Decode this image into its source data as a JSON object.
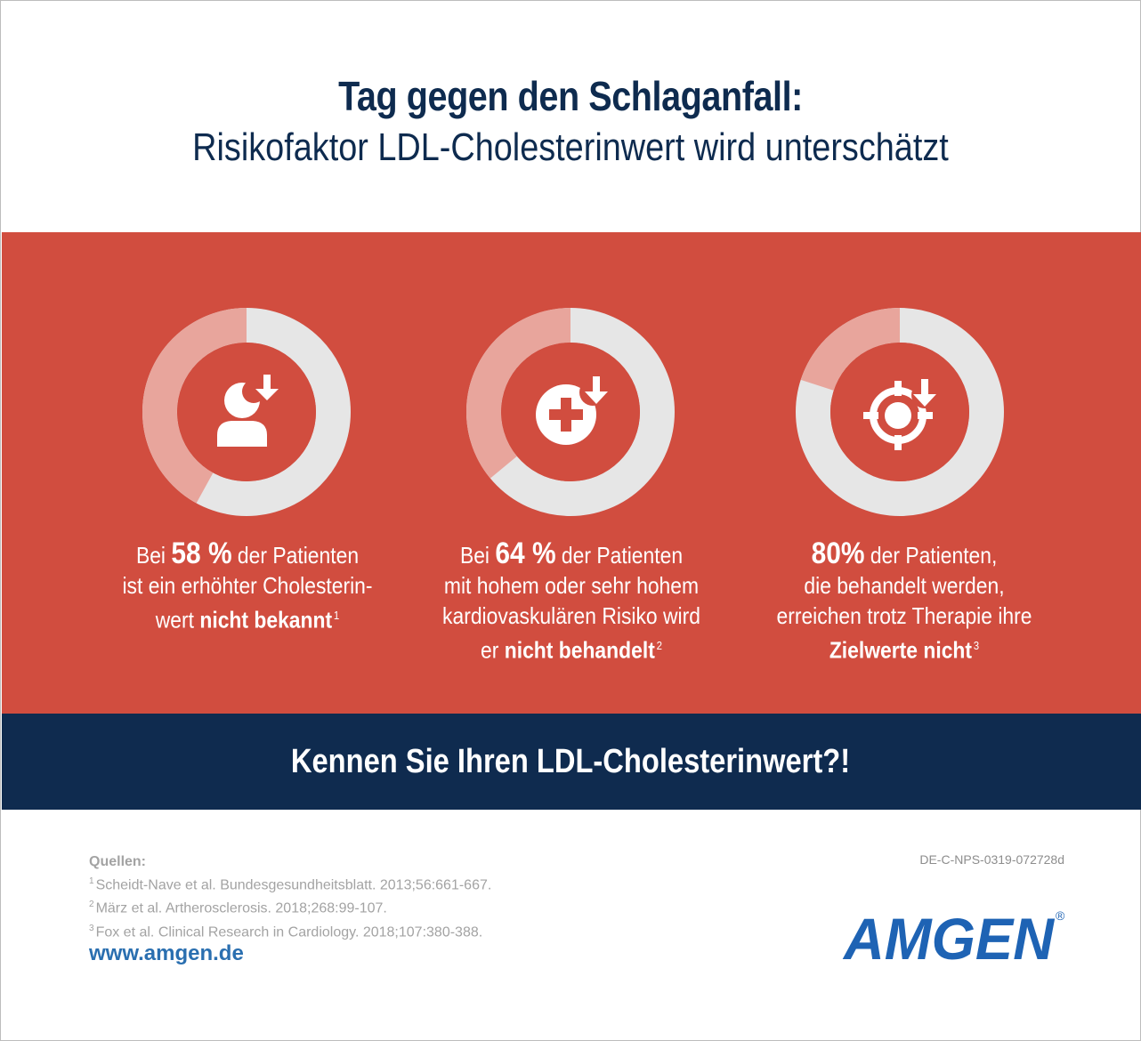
{
  "header": {
    "title": "Tag gegen den Schlaganfall:",
    "subtitle": "Risikofaktor LDL-Cholesterinwert wird unterschätzt"
  },
  "colors": {
    "band_red": "#d14d3f",
    "band_blue": "#0f2b4f",
    "donut_track": "#e6e6e6",
    "donut_fill": "#e8a59c",
    "icon_white": "#ffffff"
  },
  "chart_data": [
    {
      "type": "pie",
      "variant": "donut",
      "title": "Bei 58 % der Patienten ist ein erhöhter Cholesterinwert nicht bekannt",
      "slices": [
        {
          "label": "highlighted",
          "value": 42
        },
        {
          "label": "rest",
          "value": 58
        }
      ],
      "icon": "person-download-icon"
    },
    {
      "type": "pie",
      "variant": "donut",
      "title": "Bei 64 % der Patienten mit hohem oder sehr hohem kardiovaskulären Risiko wird er nicht behandelt",
      "slices": [
        {
          "label": "highlighted",
          "value": 36
        },
        {
          "label": "rest",
          "value": 64
        }
      ],
      "icon": "medical-cross-download-icon"
    },
    {
      "type": "pie",
      "variant": "donut",
      "title": "80% der Patienten, die behandelt werden, erreichen trotz Therapie ihre Zielwerte nicht",
      "slices": [
        {
          "label": "highlighted",
          "value": 20
        },
        {
          "label": "rest",
          "value": 80
        }
      ],
      "icon": "target-download-icon"
    }
  ],
  "stats": [
    {
      "l1_pre": "Bei ",
      "big": "58 %",
      "l1_post": " der Patienten",
      "l2": "ist ein erhöhter Cholesterin-",
      "l3_pre": "wert ",
      "l3_bold": "nicht bekannt",
      "sup": "1"
    },
    {
      "l1_pre": "Bei ",
      "big": "64 %",
      "l1_post": " der Patienten",
      "l2": "mit hohem oder sehr hohem",
      "l3": "kardiovaskulären Risiko wird",
      "l4_pre": "er ",
      "l4_bold": "nicht behandelt",
      "sup": "2"
    },
    {
      "big": "80%",
      "l1_post": " der Patienten,",
      "l2": "die behandelt werden,",
      "l3": "erreichen trotz Therapie ihre",
      "l4_bold": "Zielwerte nicht",
      "sup": "3"
    }
  ],
  "cta": "Kennen Sie Ihren LDL-Cholesterinwert?!",
  "sources": {
    "label": "Quellen:",
    "refs": [
      {
        "num": "1",
        "text": "Scheidt-Nave et al. Bundesgesundheitsblatt. 2013;56:661-667."
      },
      {
        "num": "2",
        "text": "März et al. Artherosclerosis. 2018;268:99-107."
      },
      {
        "num": "3",
        "text": "Fox et al. Clinical Research in Cardiology. 2018;107:380-388."
      }
    ]
  },
  "url": "www.amgen.de",
  "doc_code": "DE-C-NPS-0319-072728d",
  "logo": {
    "text": "AMGEN",
    "registered": "®",
    "color": "#1e63b4"
  }
}
